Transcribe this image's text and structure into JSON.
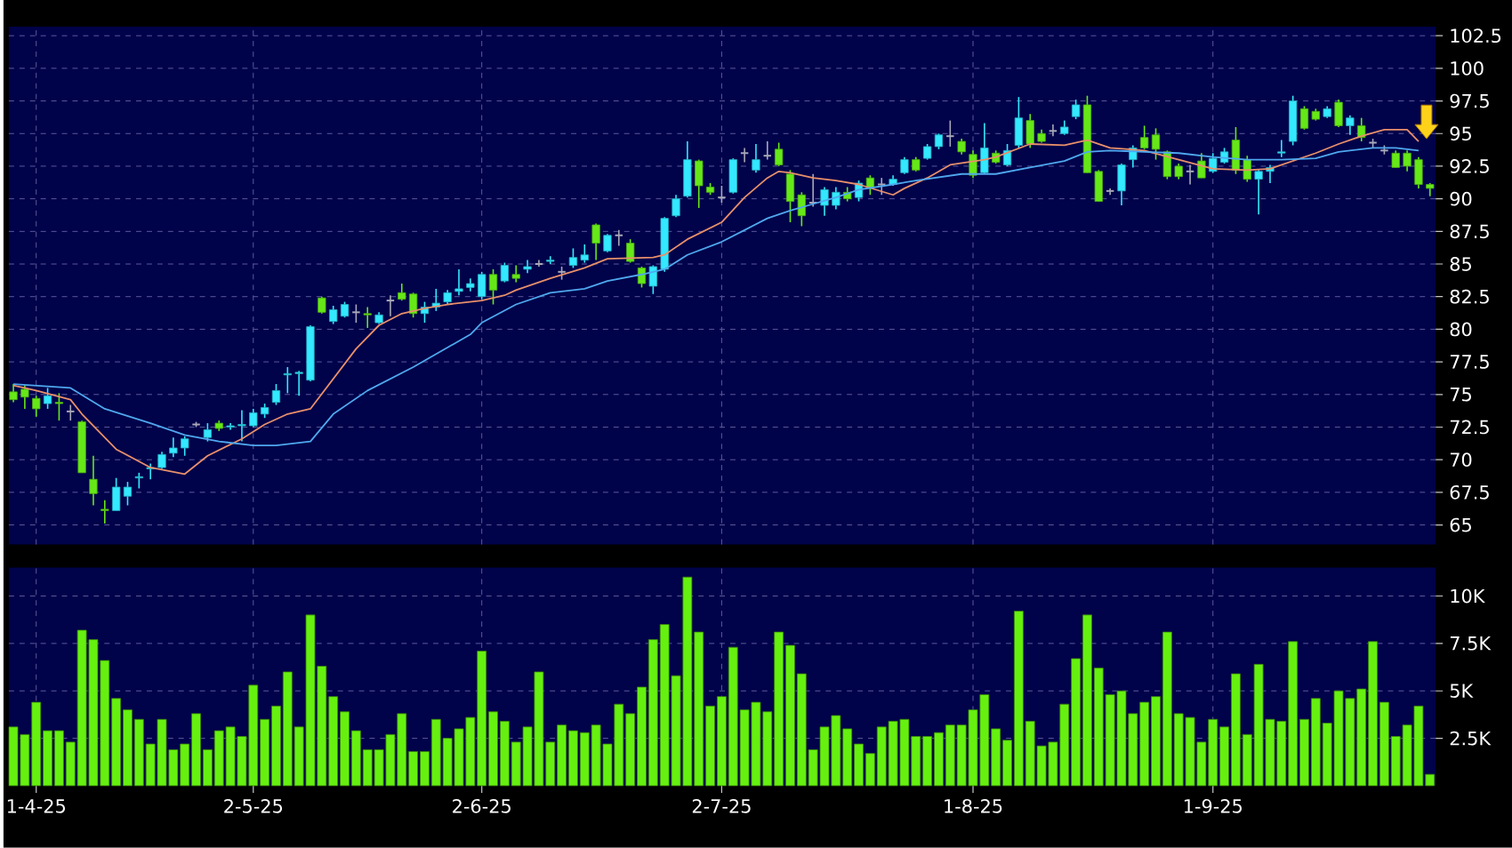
{
  "chart_data": [
    {
      "type": "candlestick",
      "categories": [
        null,
        null,
        null,
        null,
        null,
        null,
        null,
        null,
        null,
        null,
        null,
        null,
        null,
        null,
        null,
        null,
        null,
        null,
        null,
        null,
        null,
        null,
        null,
        null,
        null,
        null,
        null,
        null,
        null,
        null,
        null,
        null,
        null,
        null,
        null,
        null,
        null,
        null,
        null,
        null,
        null,
        null,
        null,
        null,
        null,
        null,
        null,
        null,
        null,
        null,
        null,
        null,
        null,
        null,
        null,
        null,
        null,
        null,
        null,
        null,
        null,
        null,
        null,
        null,
        null,
        null,
        null,
        null,
        null,
        null,
        null,
        null,
        null,
        null,
        null,
        null,
        null,
        null,
        null,
        null,
        null,
        null,
        null,
        null,
        null,
        null,
        null,
        null,
        null,
        null,
        null,
        null,
        null,
        null,
        null,
        null,
        null,
        null,
        null,
        null,
        null,
        null,
        null,
        null,
        null,
        null,
        null,
        null,
        null,
        null,
        null,
        null,
        null,
        null,
        null,
        null,
        null,
        null,
        null,
        null,
        null,
        null,
        null,
        null,
        null
      ],
      "ohlc": [
        [
          75.2,
          75.8,
          74.4,
          74.6
        ],
        [
          75.4,
          75.7,
          73.9,
          74.8
        ],
        [
          74.7,
          74.9,
          73.3,
          73.9
        ],
        [
          74.3,
          75.5,
          73.9,
          74.9
        ],
        [
          74.4,
          75.1,
          73.0,
          74.3
        ],
        [
          73.7,
          74.2,
          73.0,
          73.7
        ],
        [
          72.9,
          73.0,
          69.0,
          69.0
        ],
        [
          68.5,
          70.3,
          66.5,
          67.4
        ],
        [
          66.2,
          66.9,
          65.1,
          66.1
        ],
        [
          66.1,
          68.6,
          66.1,
          67.9
        ],
        [
          67.2,
          68.3,
          66.5,
          67.9
        ],
        [
          68.6,
          69.0,
          67.8,
          68.7
        ],
        [
          69.3,
          69.7,
          68.5,
          69.4
        ],
        [
          69.4,
          70.6,
          69.3,
          70.4
        ],
        [
          70.5,
          71.7,
          70.2,
          70.9
        ],
        [
          70.9,
          71.8,
          70.3,
          71.6
        ],
        [
          72.7,
          72.9,
          72.5,
          72.7
        ],
        [
          71.7,
          72.8,
          71.4,
          72.3
        ],
        [
          72.8,
          73.0,
          72.2,
          72.4
        ],
        [
          72.5,
          72.8,
          72.3,
          72.6
        ],
        [
          72.6,
          73.8,
          71.4,
          72.7
        ],
        [
          72.6,
          73.9,
          72.5,
          73.6
        ],
        [
          73.5,
          74.3,
          73.2,
          74.0
        ],
        [
          74.4,
          75.8,
          74.2,
          75.3
        ],
        [
          76.5,
          77.1,
          75.1,
          76.6
        ],
        [
          76.6,
          76.8,
          74.9,
          76.7
        ],
        [
          76.1,
          80.3,
          76.0,
          80.2
        ],
        [
          82.4,
          82.5,
          81.2,
          81.3
        ],
        [
          80.6,
          81.8,
          80.4,
          81.5
        ],
        [
          81.0,
          82.1,
          80.9,
          81.9
        ],
        [
          81.3,
          81.9,
          80.5,
          81.3
        ],
        [
          81.2,
          81.7,
          80.1,
          81.1
        ],
        [
          80.5,
          81.3,
          80.4,
          81.1
        ],
        [
          82.2,
          82.6,
          81.0,
          82.2
        ],
        [
          82.8,
          83.5,
          82.2,
          82.3
        ],
        [
          82.7,
          82.8,
          80.9,
          81.2
        ],
        [
          81.2,
          82.1,
          80.5,
          81.7
        ],
        [
          81.7,
          83.1,
          81.4,
          82.0
        ],
        [
          82.1,
          83.0,
          81.9,
          82.8
        ],
        [
          82.9,
          84.6,
          82.6,
          83.1
        ],
        [
          83.2,
          83.9,
          82.9,
          83.5
        ],
        [
          82.5,
          84.4,
          82.3,
          84.2
        ],
        [
          84.2,
          84.6,
          81.9,
          83.0
        ],
        [
          83.7,
          85.1,
          83.6,
          84.9
        ],
        [
          84.2,
          84.9,
          83.6,
          83.9
        ],
        [
          84.6,
          85.3,
          84.3,
          84.8
        ],
        [
          85.0,
          85.3,
          84.8,
          85.0
        ],
        [
          85.2,
          85.6,
          85.0,
          85.3
        ],
        [
          84.4,
          84.8,
          83.8,
          84.4
        ],
        [
          84.9,
          86.2,
          84.7,
          85.5
        ],
        [
          85.3,
          86.5,
          85.1,
          85.7
        ],
        [
          88.0,
          88.1,
          85.3,
          86.6
        ],
        [
          86.0,
          87.3,
          85.9,
          87.2
        ],
        [
          87.2,
          87.6,
          86.4,
          87.2
        ],
        [
          86.6,
          86.9,
          85.1,
          85.2
        ],
        [
          84.7,
          84.8,
          83.2,
          83.5
        ],
        [
          83.3,
          84.9,
          82.7,
          84.8
        ],
        [
          84.6,
          88.6,
          84.4,
          88.5
        ],
        [
          88.7,
          90.3,
          88.6,
          90.0
        ],
        [
          90.2,
          94.4,
          90.1,
          93.0
        ],
        [
          92.9,
          93.0,
          89.3,
          91.0
        ],
        [
          90.9,
          91.2,
          90.3,
          90.5
        ],
        [
          90.1,
          91.0,
          89.7,
          90.1
        ],
        [
          90.5,
          93.1,
          90.4,
          93.0
        ],
        [
          93.5,
          93.9,
          92.8,
          93.5
        ],
        [
          92.2,
          94.2,
          92.0,
          93.0
        ],
        [
          93.3,
          94.4,
          93.0,
          93.3
        ],
        [
          93.8,
          94.3,
          92.5,
          92.6
        ],
        [
          91.9,
          92.2,
          88.2,
          89.8
        ],
        [
          90.3,
          90.5,
          87.9,
          88.7
        ],
        [
          89.7,
          91.9,
          89.4,
          89.7
        ],
        [
          89.5,
          90.9,
          88.7,
          90.7
        ],
        [
          89.5,
          90.9,
          89.2,
          90.5
        ],
        [
          90.5,
          90.9,
          89.8,
          90.0
        ],
        [
          90.1,
          91.4,
          89.8,
          91.2
        ],
        [
          91.6,
          91.8,
          90.3,
          90.8
        ],
        [
          91.1,
          91.6,
          90.3,
          91.1
        ],
        [
          91.1,
          91.8,
          91.0,
          91.5
        ],
        [
          92.0,
          93.2,
          91.9,
          93.0
        ],
        [
          93.0,
          93.2,
          92.1,
          92.2
        ],
        [
          93.1,
          94.2,
          93.0,
          94.0
        ],
        [
          94.0,
          95.0,
          93.8,
          94.9
        ],
        [
          94.8,
          96.0,
          94.0,
          94.8
        ],
        [
          94.4,
          94.6,
          93.4,
          93.6
        ],
        [
          93.4,
          93.7,
          91.6,
          91.8
        ],
        [
          92.0,
          95.8,
          91.9,
          93.9
        ],
        [
          93.5,
          93.7,
          92.7,
          92.8
        ],
        [
          92.6,
          94.2,
          92.5,
          93.7
        ],
        [
          94.1,
          97.8,
          93.9,
          96.2
        ],
        [
          96.0,
          96.5,
          93.9,
          94.2
        ],
        [
          95.0,
          95.3,
          94.3,
          94.4
        ],
        [
          95.2,
          95.7,
          94.8,
          95.2
        ],
        [
          95.0,
          96.0,
          94.9,
          95.5
        ],
        [
          96.3,
          97.6,
          96.1,
          97.2
        ],
        [
          97.2,
          97.9,
          92.0,
          92.0
        ],
        [
          92.1,
          92.2,
          89.8,
          89.8
        ],
        [
          90.6,
          90.8,
          90.3,
          90.6
        ],
        [
          90.6,
          92.7,
          89.5,
          92.6
        ],
        [
          93.0,
          94.1,
          92.4,
          93.9
        ],
        [
          94.7,
          95.6,
          93.8,
          93.9
        ],
        [
          94.9,
          95.4,
          93.0,
          93.8
        ],
        [
          93.6,
          93.7,
          91.5,
          91.7
        ],
        [
          92.5,
          92.7,
          91.5,
          91.7
        ],
        [
          92.1,
          92.6,
          91.1,
          92.1
        ],
        [
          92.9,
          93.5,
          91.6,
          91.6
        ],
        [
          92.1,
          93.5,
          92.0,
          93.1
        ],
        [
          92.8,
          93.9,
          92.7,
          93.6
        ],
        [
          94.5,
          95.5,
          91.9,
          92.2
        ],
        [
          93.0,
          93.3,
          91.3,
          91.5
        ],
        [
          91.5,
          92.2,
          88.8,
          92.1
        ],
        [
          92.1,
          92.6,
          91.2,
          92.4
        ],
        [
          93.5,
          94.5,
          93.2,
          93.6
        ],
        [
          94.4,
          97.9,
          94.1,
          97.5
        ],
        [
          96.9,
          97.1,
          95.3,
          95.4
        ],
        [
          96.7,
          96.9,
          96.0,
          96.1
        ],
        [
          96.3,
          97.1,
          96.2,
          96.9
        ],
        [
          97.4,
          97.6,
          95.5,
          95.6
        ],
        [
          95.6,
          96.4,
          94.9,
          96.2
        ],
        [
          95.6,
          96.2,
          94.4,
          94.7
        ],
        [
          94.3,
          94.6,
          93.9,
          94.3
        ],
        [
          93.7,
          94.1,
          93.4,
          93.7
        ],
        [
          93.5,
          93.7,
          92.4,
          92.4
        ],
        [
          93.5,
          93.7,
          92.1,
          92.5
        ],
        [
          93.0,
          93.2,
          90.8,
          91.1
        ],
        [
          91.1,
          91.2,
          90.2,
          90.8
        ]
      ],
      "series": [
        {
          "type": "line",
          "color": "#e8906a",
          "values": [
            75.7,
            null,
            75.3,
            null,
            null,
            74.6,
            73.5,
            null,
            null,
            70.8,
            null,
            null,
            69.4,
            null,
            null,
            68.9,
            null,
            70.3,
            null,
            null,
            71.6,
            null,
            72.7,
            null,
            73.5,
            null,
            73.9,
            null,
            76.2,
            null,
            78.5,
            null,
            80.3,
            null,
            81.2,
            null,
            81.6,
            null,
            81.9,
            null,
            null,
            82.2,
            null,
            82.6,
            83.0,
            null,
            null,
            83.9,
            null,
            null,
            84.7,
            null,
            85.4,
            null,
            null,
            null,
            85.5,
            85.7,
            null,
            86.9,
            null,
            null,
            88.2,
            null,
            90.1,
            null,
            91.6,
            92.1,
            92.0,
            null,
            91.6,
            null,
            91.4,
            null,
            91.1,
            null,
            null,
            90.3,
            90.8,
            null,
            91.6,
            null,
            92.6,
            null,
            null,
            93.0,
            93.2,
            null,
            null,
            94.2,
            null,
            null,
            94.1,
            null,
            94.5,
            null,
            93.9,
            null,
            null,
            93.7,
            null,
            null,
            93.0,
            null,
            null,
            92.3,
            null,
            null,
            92.2,
            null,
            92.3,
            null,
            null,
            null,
            93.5,
            null,
            94.2,
            null,
            94.8,
            null,
            95.3,
            null,
            95.3,
            94.4,
            null
          ]
        },
        {
          "type": "line",
          "color": "#4fa8ee",
          "values": [
            75.8,
            null,
            null,
            null,
            null,
            75.5,
            null,
            null,
            73.9,
            null,
            null,
            null,
            72.8,
            null,
            null,
            71.9,
            null,
            null,
            71.4,
            null,
            null,
            71.1,
            null,
            71.1,
            null,
            null,
            71.4,
            null,
            73.5,
            null,
            null,
            75.3,
            null,
            null,
            null,
            77.1,
            null,
            null,
            null,
            null,
            79.6,
            80.5,
            null,
            null,
            81.9,
            null,
            null,
            82.8,
            null,
            null,
            83.1,
            null,
            83.7,
            null,
            null,
            84.2,
            null,
            84.6,
            null,
            85.7,
            null,
            null,
            86.7,
            null,
            87.6,
            null,
            88.5,
            null,
            89.1,
            null,
            89.6,
            null,
            90.1,
            null,
            90.7,
            null,
            null,
            91.1,
            null,
            91.4,
            null,
            null,
            null,
            91.9,
            null,
            null,
            91.9,
            null,
            null,
            92.4,
            null,
            null,
            92.9,
            null,
            93.6,
            null,
            93.7,
            null,
            null,
            93.6,
            null,
            null,
            93.5,
            null,
            null,
            93.2,
            null,
            null,
            93.0,
            null,
            null,
            93.0,
            null,
            null,
            93.1,
            null,
            93.6,
            null,
            null,
            93.9,
            null,
            93.9,
            null,
            93.7,
            null
          ]
        }
      ],
      "ylim": [
        63.5,
        103.2
      ],
      "yticks": [
        65,
        67.5,
        70,
        72.5,
        75,
        77.5,
        80,
        82.5,
        85,
        87.5,
        90,
        92.5,
        95,
        97.5,
        100,
        102.5
      ],
      "grid": true,
      "tick_labels": "y"
    },
    {
      "type": "bar",
      "categories": [
        null,
        null,
        "1-4-25",
        null,
        null,
        null,
        null,
        null,
        null,
        null,
        null,
        null,
        null,
        null,
        null,
        null,
        null,
        null,
        null,
        null,
        null,
        "2-5-25",
        null,
        null,
        null,
        null,
        null,
        null,
        null,
        null,
        null,
        null,
        null,
        null,
        null,
        null,
        null,
        null,
        null,
        null,
        null,
        "2-6-25",
        null,
        null,
        null,
        null,
        null,
        null,
        null,
        null,
        null,
        null,
        null,
        null,
        null,
        null,
        null,
        null,
        null,
        null,
        null,
        null,
        "2-7-25",
        null,
        null,
        null,
        null,
        null,
        null,
        null,
        null,
        null,
        null,
        null,
        null,
        null,
        null,
        null,
        null,
        null,
        null,
        null,
        null,
        null,
        "1-8-25",
        null,
        null,
        null,
        null,
        null,
        null,
        null,
        null,
        null,
        null,
        null,
        null,
        null,
        null,
        null,
        null,
        null,
        null,
        null,
        null,
        "1-9-25",
        null,
        null,
        null,
        null,
        null,
        null,
        null,
        null,
        null,
        null,
        null,
        null,
        null,
        null,
        null,
        null,
        null,
        null,
        null
      ],
      "values": [
        3.1,
        2.7,
        4.4,
        2.9,
        2.9,
        2.3,
        8.2,
        7.7,
        6.6,
        4.6,
        4.0,
        3.5,
        2.2,
        3.5,
        1.9,
        2.2,
        3.8,
        1.9,
        2.9,
        3.1,
        2.6,
        5.3,
        3.5,
        4.2,
        6.0,
        3.1,
        9.0,
        6.3,
        4.7,
        3.9,
        2.9,
        1.9,
        1.9,
        2.7,
        3.8,
        1.8,
        1.8,
        3.5,
        2.5,
        3.0,
        3.6,
        7.1,
        3.9,
        3.4,
        2.3,
        3.1,
        6.0,
        2.3,
        3.2,
        2.9,
        2.8,
        3.2,
        2.2,
        4.3,
        3.8,
        5.2,
        7.7,
        8.5,
        5.8,
        11.0,
        8.1,
        4.2,
        4.7,
        7.3,
        4.0,
        4.4,
        3.9,
        8.1,
        7.4,
        5.9,
        1.9,
        3.1,
        3.7,
        3.0,
        2.2,
        1.7,
        3.1,
        3.4,
        3.5,
        2.6,
        2.6,
        2.8,
        3.2,
        3.2,
        4.0,
        4.8,
        3.0,
        2.4,
        9.2,
        3.4,
        2.1,
        2.3,
        4.3,
        6.7,
        9.0,
        6.2,
        4.8,
        5.0,
        3.8,
        4.4,
        4.7,
        8.1,
        3.8,
        3.6,
        2.3,
        3.5,
        3.1,
        5.9,
        2.7,
        6.4,
        3.5,
        3.4,
        7.6,
        3.5,
        4.6,
        3.3,
        5.0,
        4.6,
        5.1,
        7.6,
        4.4,
        2.6,
        3.2,
        4.2,
        0.6
      ],
      "color": "#66f010",
      "ylim": [
        0,
        11.5
      ],
      "yticks": [
        {
          "value": 2.5,
          "label": "2.5K"
        },
        {
          "value": 5,
          "label": "5K"
        },
        {
          "value": 7.5,
          "label": "7.5K"
        },
        {
          "value": 10,
          "label": "10K"
        }
      ],
      "grid": true
    }
  ]
}
